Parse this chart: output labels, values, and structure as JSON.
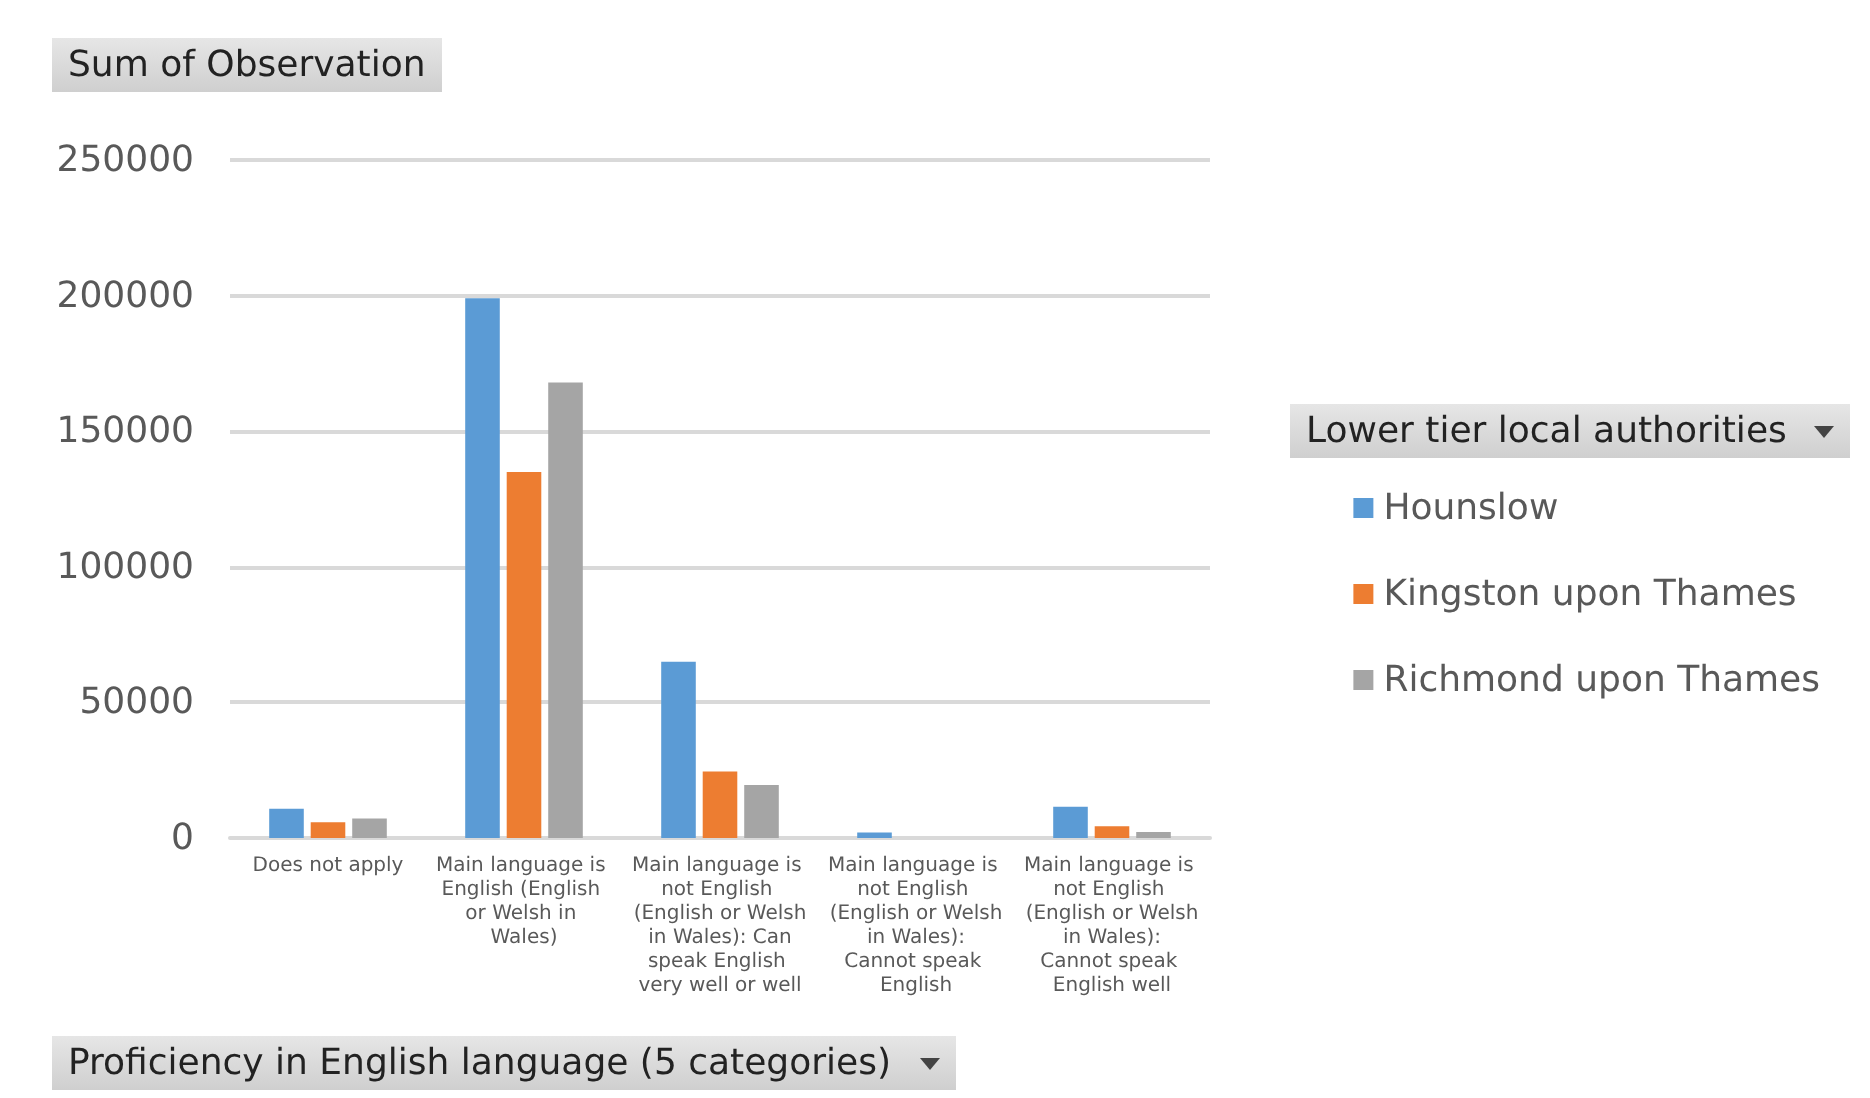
{
  "chart_data": {
    "type": "bar",
    "title": "Sum of Observation",
    "xlabel": "Proficiency in English language (5 categories)",
    "legend_title": "Lower tier local authorities",
    "categories": [
      "Does not apply",
      "Main language is English (English or Welsh in Wales)",
      "Main language is not English (English or Welsh in Wales): Can speak English very well or well",
      "Main language is not English (English or Welsh in Wales): Cannot speak English",
      "Main language is not English (English or Welsh in Wales): Cannot speak English well"
    ],
    "series": [
      {
        "name": "Hounslow",
        "color": "#5b9bd5",
        "values": [
          10800,
          199000,
          65000,
          2000,
          11500
        ]
      },
      {
        "name": "Kingston upon Thames",
        "color": "#ed7d31",
        "values": [
          5800,
          135000,
          24500,
          0,
          4300
        ]
      },
      {
        "name": "Richmond upon Thames",
        "color": "#a5a5a5",
        "values": [
          7200,
          168000,
          19500,
          0,
          2200
        ]
      }
    ],
    "ylim": [
      0,
      250000
    ],
    "yticks": [
      0,
      50000,
      100000,
      150000,
      200000,
      250000
    ],
    "grid": "y",
    "legend": "right"
  }
}
